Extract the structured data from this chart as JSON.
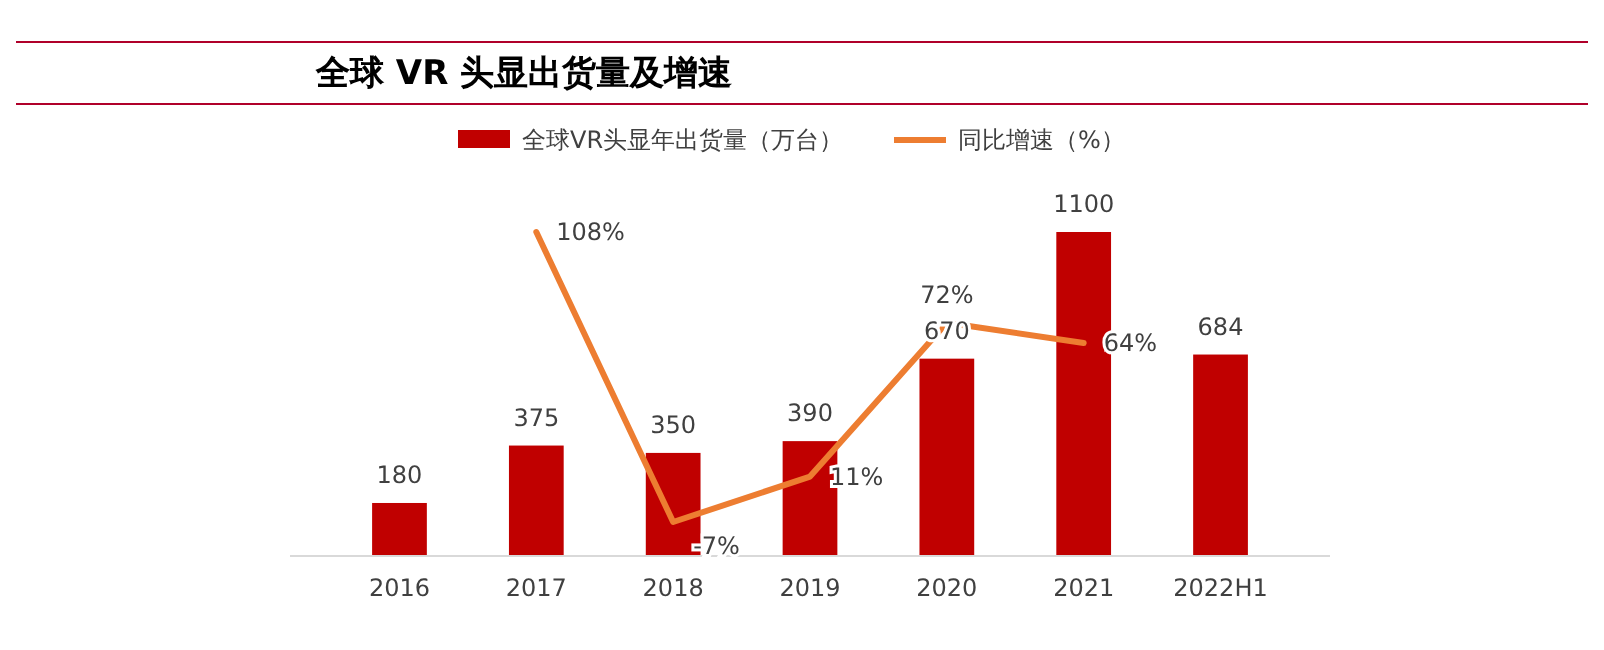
{
  "chart_data": {
    "type": "bar",
    "title": "全球 VR 头显出货量及增速",
    "categories": [
      "2016",
      "2017",
      "2018",
      "2019",
      "2020",
      "2021",
      "2022H1"
    ],
    "series": [
      {
        "name": "全球VR头显年出货量（万台）",
        "color": "#c00000",
        "values": [
          180,
          375,
          350,
          390,
          670,
          1100,
          684
        ],
        "value_labels": [
          "180",
          "375",
          "350",
          "390",
          "670",
          "1100",
          "684"
        ]
      },
      {
        "name": "同比增速（%）",
        "type": "line",
        "axis": "y2",
        "color": "#ed7d31",
        "values": [
          null,
          108,
          -7,
          11,
          72,
          64,
          null
        ],
        "value_labels": [
          null,
          "108%",
          "-7%",
          "11%",
          "72%",
          "64%",
          null
        ]
      }
    ],
    "legend": "top",
    "tick_labels": "x"
  }
}
